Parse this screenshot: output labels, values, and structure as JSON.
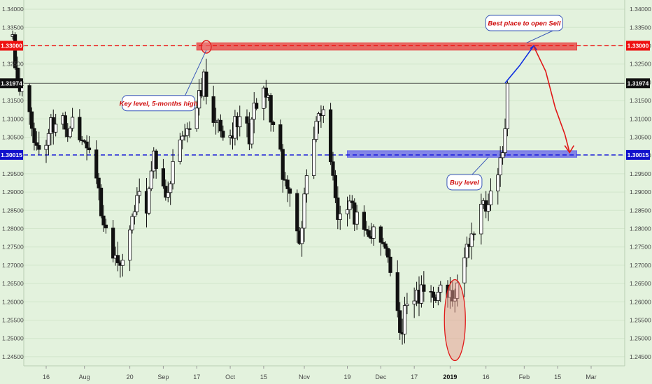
{
  "chart_data": {
    "type": "candlestick",
    "instrument": "GBPUSD",
    "ylim": [
      1.2425,
      1.3425
    ],
    "y_ticks": [
      "1.34000",
      "1.33500",
      "1.33000",
      "1.32500",
      "1.32000",
      "1.31500",
      "1.31000",
      "1.30500",
      "1.30000",
      "1.29500",
      "1.29000",
      "1.28500",
      "1.28000",
      "1.27500",
      "1.27000",
      "1.26500",
      "1.26000",
      "1.25500",
      "1.25000",
      "1.24500"
    ],
    "x_labels": [
      {
        "label": "16",
        "date": "2018-07-16",
        "bold": false
      },
      {
        "label": "Aug",
        "date": "2018-08-01",
        "bold": false
      },
      {
        "label": "20",
        "date": "2018-08-20",
        "bold": false
      },
      {
        "label": "Sep",
        "date": "2018-09-03",
        "bold": false
      },
      {
        "label": "17",
        "date": "2018-09-17",
        "bold": false
      },
      {
        "label": "Oct",
        "date": "2018-10-01",
        "bold": false
      },
      {
        "label": "15",
        "date": "2018-10-15",
        "bold": false
      },
      {
        "label": "Nov",
        "date": "2018-11-01",
        "bold": false
      },
      {
        "label": "19",
        "date": "2018-11-19",
        "bold": false
      },
      {
        "label": "Dec",
        "date": "2018-12-03",
        "bold": false
      },
      {
        "label": "17",
        "date": "2018-12-17",
        "bold": false
      },
      {
        "label": "2019",
        "date": "2019-01-01",
        "bold": true
      },
      {
        "label": "16",
        "date": "2019-01-16",
        "bold": false
      },
      {
        "label": "Feb",
        "date": "2019-02-01",
        "bold": false
      },
      {
        "label": "15",
        "date": "2019-02-15",
        "bold": false
      },
      {
        "label": "Mar",
        "date": "2019-03-01",
        "bold": false
      }
    ],
    "current_price": {
      "value": 1.31974,
      "label": "1.31974"
    },
    "levels": [
      {
        "value": 1.33,
        "label": "1.33000",
        "color": "#ee1111",
        "style": "dashed"
      },
      {
        "value": 1.30015,
        "label": "1.30015",
        "color": "#1111dd",
        "style": "dashed"
      }
    ],
    "zones": [
      {
        "from_date": "2018-09-17",
        "to_date": "2019-02-23",
        "low": 1.3288,
        "high": 1.3308,
        "color": "#e84545"
      },
      {
        "from_date": "2018-11-19",
        "to_date": "2019-02-23",
        "low": 1.2995,
        "high": 1.3013,
        "color": "#6a6ae8"
      }
    ],
    "annotations": [
      {
        "text": "Best place to open Sell",
        "date": "2019-02-01",
        "price": 1.3362
      },
      {
        "text": "Key level, 5-months high",
        "date": "2018-09-01",
        "price": 1.3143
      },
      {
        "text": "Buy level",
        "date": "2019-01-07",
        "price": 1.2927
      }
    ],
    "projection": {
      "up": [
        [
          "2019-01-24",
          1.3198
        ],
        [
          "2019-01-30",
          1.3245
        ],
        [
          "2019-02-05",
          1.33
        ]
      ],
      "down": [
        [
          "2019-02-05",
          1.3298
        ],
        [
          "2019-02-10",
          1.323
        ],
        [
          "2019-02-14",
          1.313
        ],
        [
          "2019-02-18",
          1.3058
        ],
        [
          "2019-02-20",
          1.3008
        ]
      ]
    },
    "anchors": [
      {
        "date": "2018-07-02",
        "price": 1.331
      },
      {
        "date": "2018-07-04",
        "price": 1.321
      },
      {
        "date": "2018-07-13",
        "price": 1.301
      },
      {
        "date": "2018-07-20",
        "price": 1.31
      },
      {
        "date": "2018-07-25",
        "price": 1.308
      },
      {
        "date": "2018-07-31",
        "price": 1.307
      },
      {
        "date": "2018-08-07",
        "price": 1.29
      },
      {
        "date": "2018-08-10",
        "price": 1.278
      },
      {
        "date": "2018-08-15",
        "price": 1.272
      },
      {
        "date": "2018-08-17",
        "price": 1.273
      },
      {
        "date": "2018-08-22",
        "price": 1.2875
      },
      {
        "date": "2018-08-27",
        "price": 1.287
      },
      {
        "date": "2018-08-30",
        "price": 1.301
      },
      {
        "date": "2018-09-04",
        "price": 1.287
      },
      {
        "date": "2018-09-10",
        "price": 1.304
      },
      {
        "date": "2018-09-14",
        "price": 1.308
      },
      {
        "date": "2018-09-20",
        "price": 1.32
      },
      {
        "date": "2018-09-21",
        "price": 1.316
      },
      {
        "date": "2018-09-27",
        "price": 1.305
      },
      {
        "date": "2018-10-01",
        "price": 1.306
      },
      {
        "date": "2018-10-05",
        "price": 1.312
      },
      {
        "date": "2018-10-09",
        "price": 1.305
      },
      {
        "date": "2018-10-12",
        "price": 1.3155
      },
      {
        "date": "2018-10-16",
        "price": 1.318
      },
      {
        "date": "2018-10-19",
        "price": 1.306
      },
      {
        "date": "2018-10-24",
        "price": 1.294
      },
      {
        "date": "2018-10-30",
        "price": 1.274
      },
      {
        "date": "2018-11-02",
        "price": 1.297
      },
      {
        "date": "2018-11-07",
        "price": 1.311
      },
      {
        "date": "2018-11-09",
        "price": 1.312
      },
      {
        "date": "2018-11-15",
        "price": 1.284
      },
      {
        "date": "2018-11-20",
        "price": 1.285
      },
      {
        "date": "2018-11-26",
        "price": 1.28
      },
      {
        "date": "2018-11-30",
        "price": 1.279
      },
      {
        "date": "2018-12-05",
        "price": 1.276
      },
      {
        "date": "2018-12-10",
        "price": 1.259
      },
      {
        "date": "2018-12-11",
        "price": 1.25
      },
      {
        "date": "2018-12-14",
        "price": 1.259
      },
      {
        "date": "2018-12-18",
        "price": 1.262
      },
      {
        "date": "2018-12-24",
        "price": 1.262
      },
      {
        "date": "2018-12-28",
        "price": 1.264
      },
      {
        "date": "2019-01-03",
        "price": 1.262
      },
      {
        "date": "2019-01-07",
        "price": 1.274
      },
      {
        "date": "2019-01-10",
        "price": 1.276
      },
      {
        "date": "2019-01-14",
        "price": 1.286
      },
      {
        "date": "2019-01-17",
        "price": 1.288
      },
      {
        "date": "2019-01-21",
        "price": 1.294
      },
      {
        "date": "2019-01-24",
        "price": 1.308
      },
      {
        "date": "2019-01-25",
        "price": 1.319
      }
    ]
  }
}
